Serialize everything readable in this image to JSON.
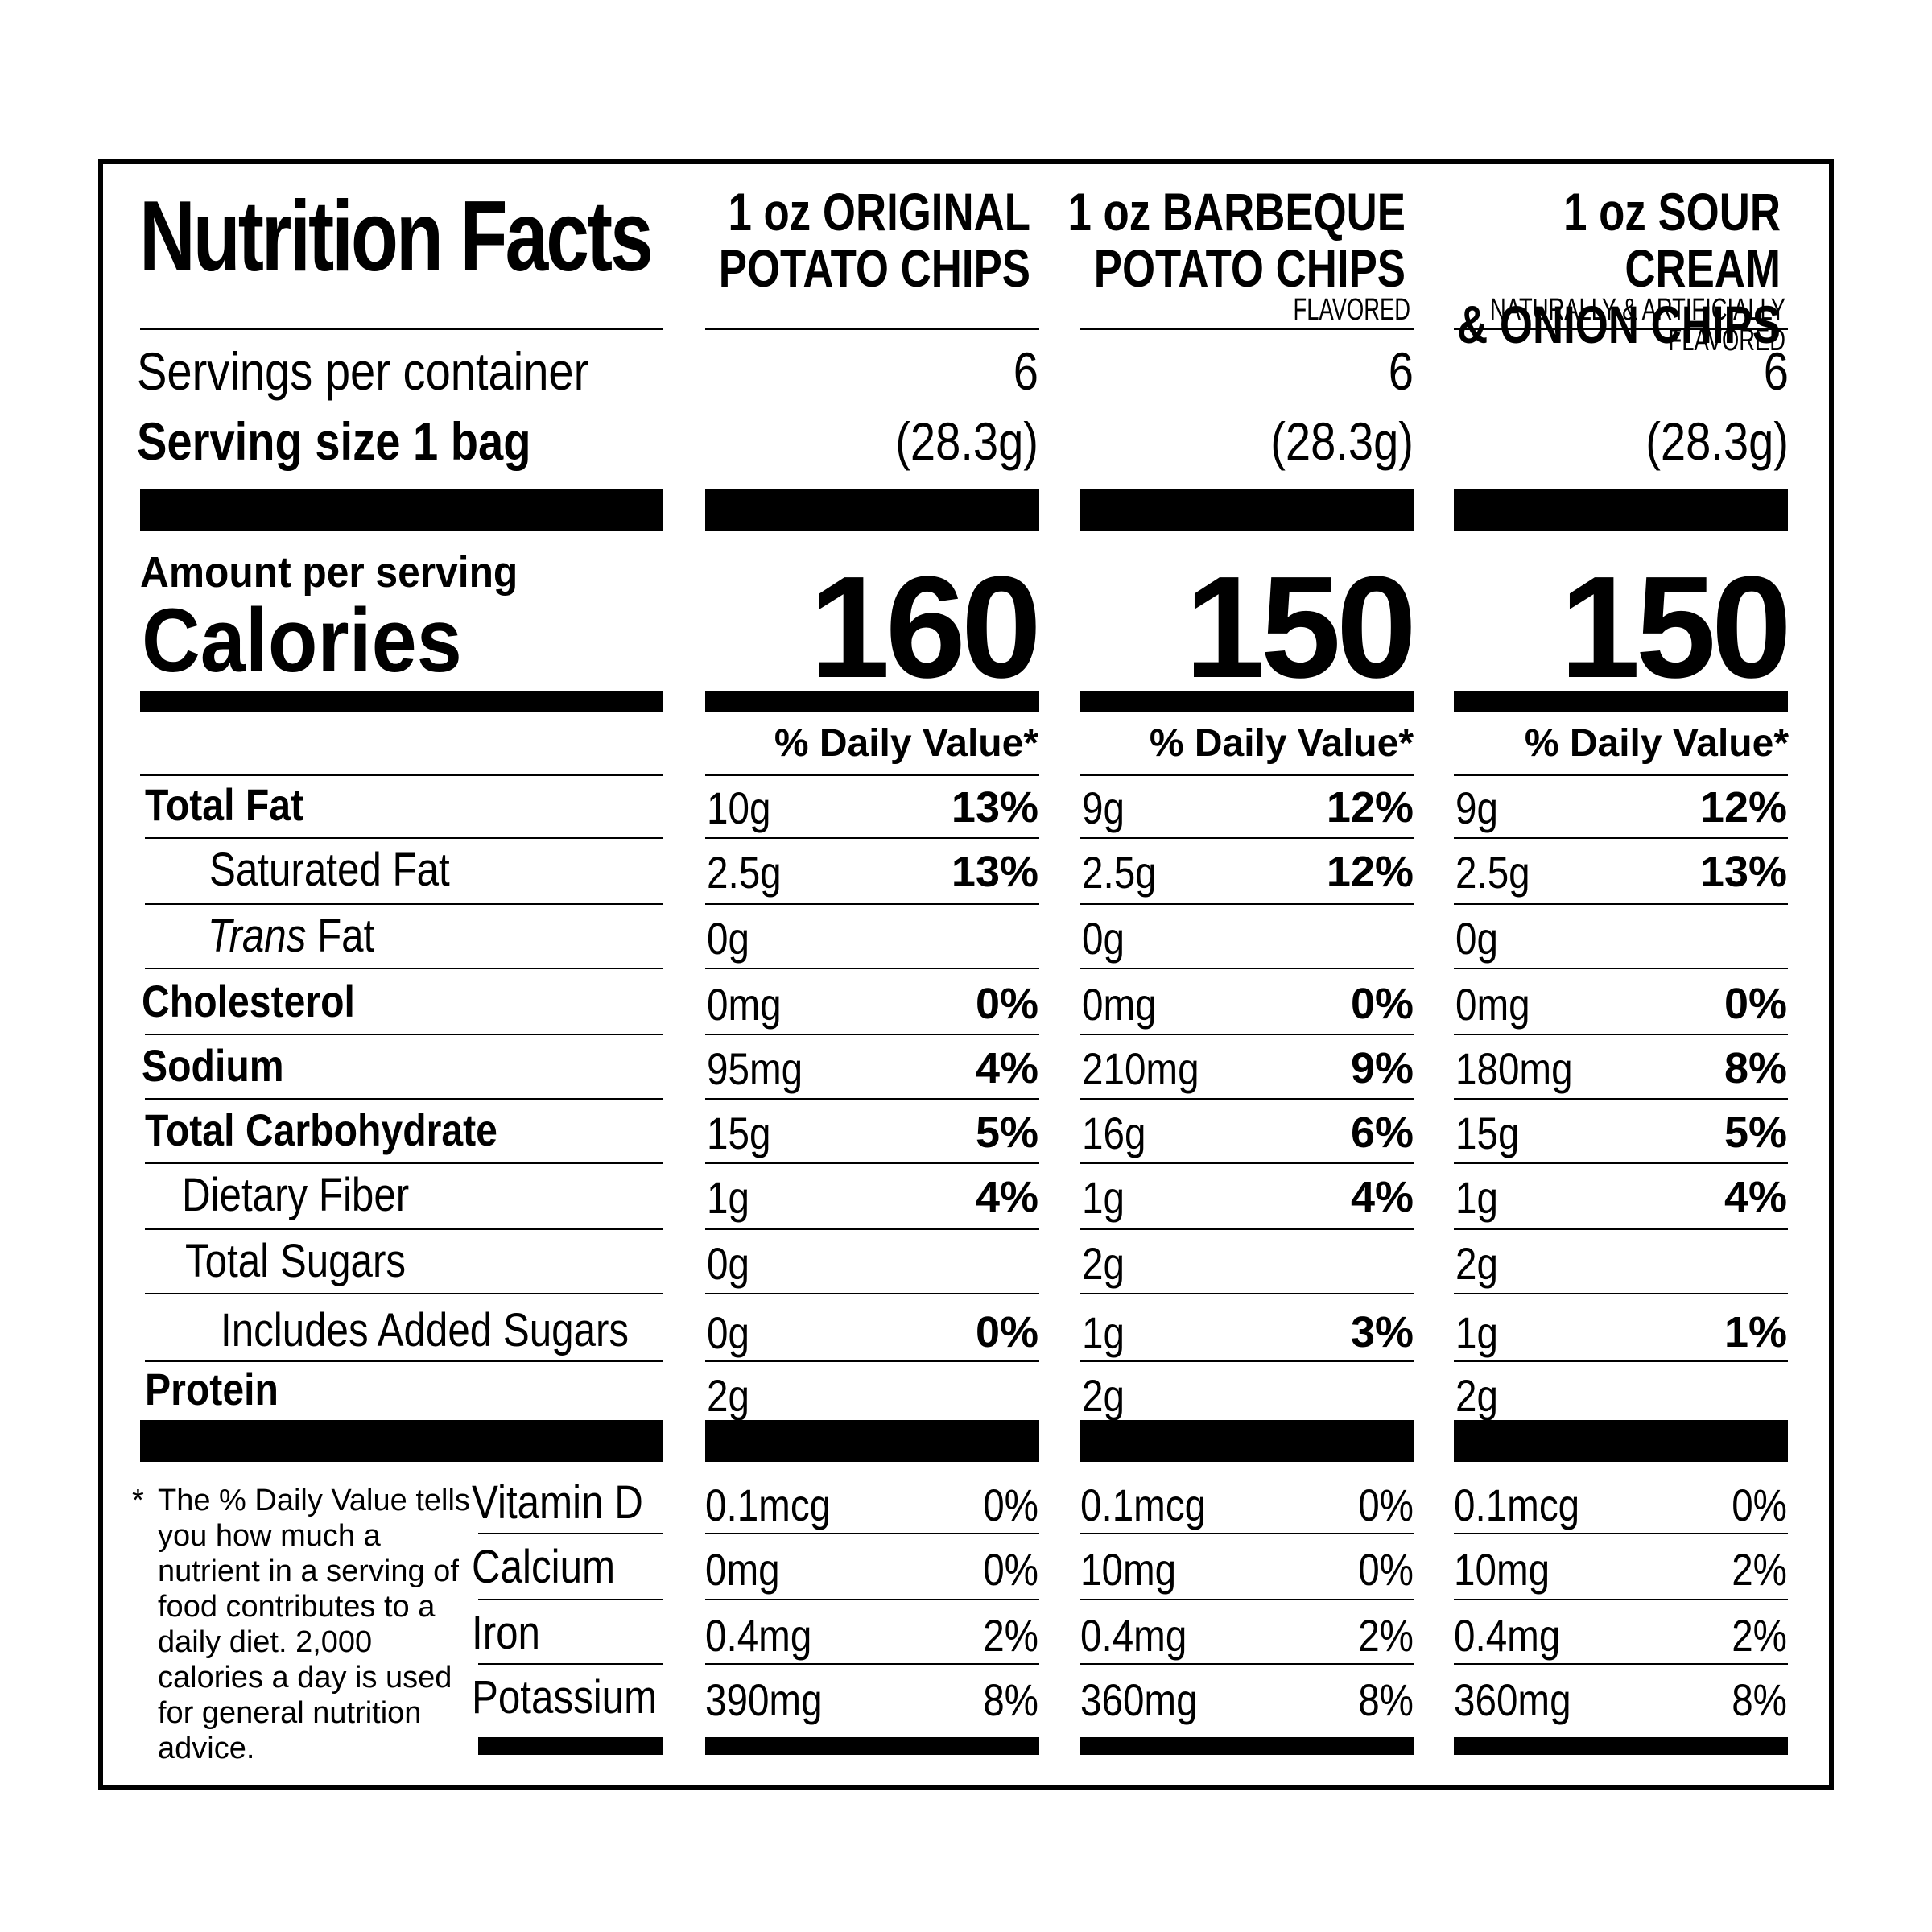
{
  "title": "Nutrition Facts",
  "products": [
    {
      "name_line1": "1 oz ORIGINAL",
      "name_line2": "POTATO CHIPS",
      "note": "",
      "servings": "6",
      "serving_weight": "(28.3g)",
      "calories": "160",
      "dv_header": "% Daily Value*"
    },
    {
      "name_line1": "1 oz BARBEQUE",
      "name_line2": "POTATO CHIPS",
      "note": "FLAVORED",
      "servings": "6",
      "serving_weight": "(28.3g)",
      "calories": "150",
      "dv_header": "% Daily Value*"
    },
    {
      "name_line1": "1 oz SOUR CREAM",
      "name_line2": "& ONION CHIPS",
      "note": "NATURALLY & ARTIFICIALLY FLAVORED",
      "servings": "6",
      "serving_weight": "(28.3g)",
      "calories": "150",
      "dv_header": "% Daily Value*"
    }
  ],
  "servings_label": "Servings per container",
  "serving_size_label": "Serving size 1 bag",
  "amount_per_serving": "Amount per serving",
  "calories_label": "Calories",
  "nutrients": [
    {
      "label": "Total Fat",
      "values": [
        [
          "10g",
          "13%"
        ],
        [
          "9g",
          "12%"
        ],
        [
          "9g",
          "12%"
        ]
      ]
    },
    {
      "label": "Saturated Fat",
      "values": [
        [
          "2.5g",
          "13%"
        ],
        [
          "2.5g",
          "12%"
        ],
        [
          "2.5g",
          "13%"
        ]
      ]
    },
    {
      "label_italic": "Trans",
      "label": "Fat",
      "values": [
        [
          "0g",
          ""
        ],
        [
          "0g",
          ""
        ],
        [
          "0g",
          ""
        ]
      ]
    },
    {
      "label": "Cholesterol",
      "values": [
        [
          "0mg",
          "0%"
        ],
        [
          "0mg",
          "0%"
        ],
        [
          "0mg",
          "0%"
        ]
      ]
    },
    {
      "label": "Sodium",
      "values": [
        [
          "95mg",
          "4%"
        ],
        [
          "210mg",
          "9%"
        ],
        [
          "180mg",
          "8%"
        ]
      ]
    },
    {
      "label": "Total Carbohydrate",
      "values": [
        [
          "15g",
          "5%"
        ],
        [
          "16g",
          "6%"
        ],
        [
          "15g",
          "5%"
        ]
      ]
    },
    {
      "label": "Dietary Fiber",
      "values": [
        [
          "1g",
          "4%"
        ],
        [
          "1g",
          "4%"
        ],
        [
          "1g",
          "4%"
        ]
      ]
    },
    {
      "label": "Total Sugars",
      "values": [
        [
          "0g",
          ""
        ],
        [
          "2g",
          ""
        ],
        [
          "2g",
          ""
        ]
      ]
    },
    {
      "label": "Includes Added Sugars",
      "values": [
        [
          "0g",
          "0%"
        ],
        [
          "1g",
          "3%"
        ],
        [
          "1g",
          "1%"
        ]
      ]
    },
    {
      "label": "Protein",
      "values": [
        [
          "2g",
          ""
        ],
        [
          "2g",
          ""
        ],
        [
          "2g",
          ""
        ]
      ]
    }
  ],
  "vitamins": [
    {
      "label": "Vitamin D",
      "values": [
        [
          "0.1mcg",
          "0%"
        ],
        [
          "0.1mcg",
          "0%"
        ],
        [
          "0.1mcg",
          "0%"
        ]
      ]
    },
    {
      "label": "Calcium",
      "values": [
        [
          "0mg",
          "0%"
        ],
        [
          "10mg",
          "0%"
        ],
        [
          "10mg",
          "2%"
        ]
      ]
    },
    {
      "label": "Iron",
      "values": [
        [
          "0.4mg",
          "2%"
        ],
        [
          "0.4mg",
          "2%"
        ],
        [
          "0.4mg",
          "2%"
        ]
      ]
    },
    {
      "label": "Potassium",
      "values": [
        [
          "390mg",
          "8%"
        ],
        [
          "360mg",
          "8%"
        ],
        [
          "360mg",
          "8%"
        ]
      ]
    }
  ],
  "footnote_star": "*",
  "footnote": "The % Daily Value tells you how much a nutrient in a serving of food contributes to a daily diet. 2,000 calories a day is used for general nutrition advice."
}
